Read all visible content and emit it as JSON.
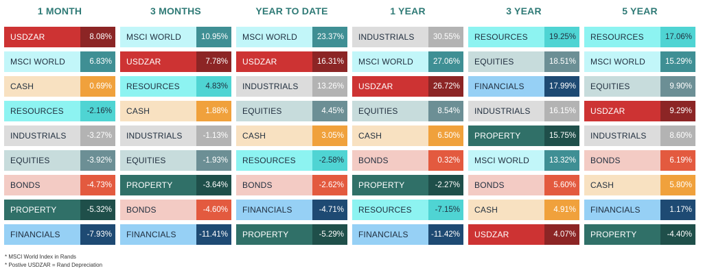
{
  "styles": {
    "USDZAR": {
      "bg": "#cd3333",
      "vbg": "#8c2525",
      "fg": "#ffffff",
      "vfg": "#ffffff"
    },
    "MSCI WORLD": {
      "bg": "#c2f6f9",
      "vbg": "#3f8f94",
      "fg": "#1f2d3d",
      "vfg": "#ffffff"
    },
    "CASH": {
      "bg": "#f8e1c1",
      "vbg": "#f0a13c",
      "fg": "#1f2d3d",
      "vfg": "#ffffff"
    },
    "RESOURCES": {
      "bg": "#8df3f1",
      "vbg": "#4fd4d3",
      "fg": "#1f2d3d",
      "vfg": "#1f2d3d"
    },
    "INDUSTRIALS": {
      "bg": "#dcdcdc",
      "vbg": "#b3b3b3",
      "fg": "#1f2d3d",
      "vfg": "#ffffff"
    },
    "EQUITIES": {
      "bg": "#c7dcdc",
      "vbg": "#6c8f95",
      "fg": "#1f2d3d",
      "vfg": "#ffffff"
    },
    "BONDS": {
      "bg": "#f3cbc4",
      "vbg": "#e35a3f",
      "fg": "#1f2d3d",
      "vfg": "#ffffff"
    },
    "PROPERTY": {
      "bg": "#307068",
      "vbg": "#1f4f4a",
      "fg": "#ffffff",
      "vfg": "#ffffff"
    },
    "FINANCIALS": {
      "bg": "#96d0f5",
      "vbg": "#1e4a73",
      "fg": "#1f2d3d",
      "vfg": "#ffffff"
    }
  },
  "chart_data": {
    "type": "table",
    "columns": [
      {
        "title": "1 MONTH",
        "rows": [
          [
            "USDZAR",
            "8.08%"
          ],
          [
            "MSCI WORLD",
            "6.83%"
          ],
          [
            "CASH",
            "0.69%"
          ],
          [
            "RESOURCES",
            "-2.16%"
          ],
          [
            "INDUSTRIALS",
            "-3.27%"
          ],
          [
            "EQUITIES",
            "-3.92%"
          ],
          [
            "BONDS",
            "-4.73%"
          ],
          [
            "PROPERTY",
            "-5.32%"
          ],
          [
            "FINANCIALS",
            "-7.93%"
          ]
        ]
      },
      {
        "title": "3 MONTHS",
        "rows": [
          [
            "MSCI WORLD",
            "10.95%"
          ],
          [
            "USDZAR",
            "7.78%"
          ],
          [
            "RESOURCES",
            "4.83%"
          ],
          [
            "CASH",
            "1.88%"
          ],
          [
            "INDUSTRIALS",
            "-1.13%"
          ],
          [
            "EQUITIES",
            "-1.93%"
          ],
          [
            "PROPERTY",
            "-3.64%"
          ],
          [
            "BONDS",
            "-4.60%"
          ],
          [
            "FINANCIALS",
            "-11.41%"
          ]
        ]
      },
      {
        "title": "YEAR TO DATE",
        "rows": [
          [
            "MSCI WORLD",
            "23.37%"
          ],
          [
            "USDZAR",
            "16.31%"
          ],
          [
            "INDUSTRIALS",
            "13.26%"
          ],
          [
            "EQUITIES",
            "4.45%"
          ],
          [
            "CASH",
            "3.05%"
          ],
          [
            "RESOURCES",
            "-2.58%"
          ],
          [
            "BONDS",
            "-2.62%"
          ],
          [
            "FINANCIALS",
            "-4.71%"
          ],
          [
            "PROPERTY",
            "-5.29%"
          ]
        ]
      },
      {
        "title": "1 YEAR",
        "rows": [
          [
            "INDUSTRIALS",
            "30.55%"
          ],
          [
            "MSCI WORLD",
            "27.06%"
          ],
          [
            "USDZAR",
            "26.72%"
          ],
          [
            "EQUITIES",
            "8.54%"
          ],
          [
            "CASH",
            "6.50%"
          ],
          [
            "BONDS",
            "0.32%"
          ],
          [
            "PROPERTY",
            "-2.27%"
          ],
          [
            "RESOURCES",
            "-7.15%"
          ],
          [
            "FINANCIALS",
            "-11.42%"
          ]
        ]
      },
      {
        "title": "3 YEAR",
        "rows": [
          [
            "RESOURCES",
            "19.25%"
          ],
          [
            "EQUITIES",
            "18.51%"
          ],
          [
            "FINANCIALS",
            "17.99%"
          ],
          [
            "INDUSTRIALS",
            "16.15%"
          ],
          [
            "PROPERTY",
            "15.75%"
          ],
          [
            "MSCI WORLD",
            "13.32%"
          ],
          [
            "BONDS",
            "5.60%"
          ],
          [
            "CASH",
            "4.91%"
          ],
          [
            "USDZAR",
            "4.07%"
          ]
        ]
      },
      {
        "title": "5 YEAR",
        "rows": [
          [
            "RESOURCES",
            "17.06%"
          ],
          [
            "MSCI WORLD",
            "15.29%"
          ],
          [
            "EQUITIES",
            "9.90%"
          ],
          [
            "USDZAR",
            "9.29%"
          ],
          [
            "INDUSTRIALS",
            "8.60%"
          ],
          [
            "BONDS",
            "6.19%"
          ],
          [
            "CASH",
            "5.80%"
          ],
          [
            "FINANCIALS",
            "1.17%"
          ],
          [
            "PROPERTY",
            "-4.40%"
          ]
        ]
      }
    ]
  },
  "footnotes": {
    "line1": "* MSCI World Index in  Rands",
    "line2": "* Postive USDZAR = Rand Depreciation"
  }
}
